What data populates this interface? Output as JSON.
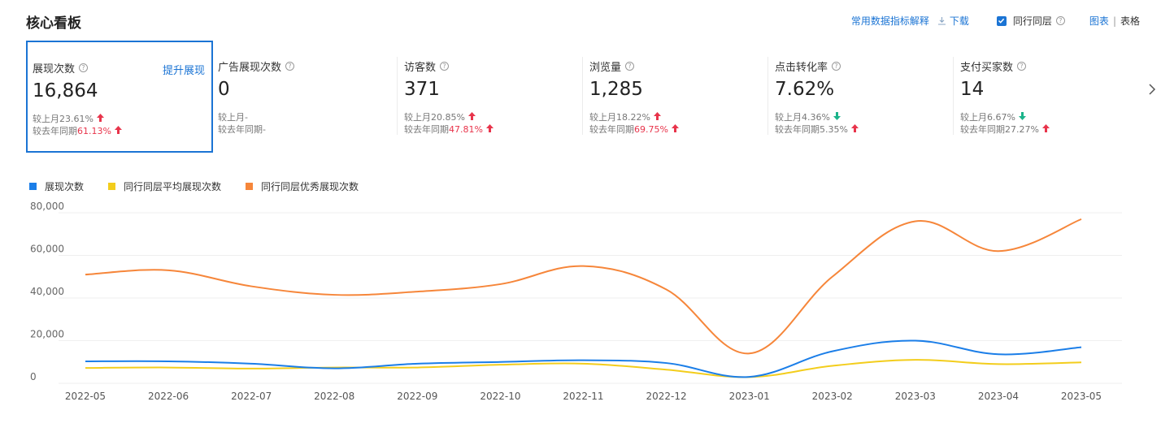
{
  "header": {
    "title": "核心看板",
    "metric_help_link": "常用数据指标解释",
    "download_label": "下载",
    "peer_checkbox_label": "同行同层",
    "peer_checked": true,
    "view_chart_label": "图表",
    "view_table_label": "表格"
  },
  "cards": [
    {
      "label": "展现次数",
      "value": "16,864",
      "boost": "提升展现",
      "mom_label": "较上月",
      "mom_pct": "23.61%",
      "mom_dir": "up",
      "yoy_label": "较去年同期",
      "yoy_pct": "61.13%",
      "yoy_dir": "up",
      "selected": true
    },
    {
      "label": "广告展现次数",
      "value": "0",
      "mom_label": "较上月",
      "mom_pct": "-",
      "mom_dir": "none",
      "yoy_label": "较去年同期",
      "yoy_pct": "-",
      "yoy_dir": "none"
    },
    {
      "label": "访客数",
      "value": "371",
      "mom_label": "较上月",
      "mom_pct": "20.85%",
      "mom_dir": "up",
      "yoy_label": "较去年同期",
      "yoy_pct": "47.81%",
      "yoy_dir": "up"
    },
    {
      "label": "浏览量",
      "value": "1,285",
      "mom_label": "较上月",
      "mom_pct": "18.22%",
      "mom_dir": "up",
      "yoy_label": "较去年同期",
      "yoy_pct": "69.75%",
      "yoy_dir": "up"
    },
    {
      "label": "点击转化率",
      "value": "7.62%",
      "mom_label": "较上月",
      "mom_pct": "4.36%",
      "mom_dir": "down",
      "yoy_label": "较去年同期",
      "yoy_pct": "5.35%",
      "yoy_dir": "up"
    },
    {
      "label": "支付买家数",
      "value": "14",
      "mom_label": "较上月",
      "mom_pct": "6.67%",
      "mom_dir": "down",
      "yoy_label": "较去年同期",
      "yoy_pct": "27.27%",
      "yoy_dir": "up"
    }
  ],
  "colors": {
    "accent": "#1b74d4",
    "up": "#e8344b",
    "down": "#1bb38a"
  },
  "chart_data": {
    "type": "line",
    "x": [
      "2022-05",
      "2022-06",
      "2022-07",
      "2022-08",
      "2022-09",
      "2022-10",
      "2022-11",
      "2022-12",
      "2023-01",
      "2023-02",
      "2023-03",
      "2023-04",
      "2023-05"
    ],
    "ylim": [
      0,
      80000
    ],
    "yticks": [
      "80,000",
      "60,000",
      "40,000",
      "20,000",
      "0"
    ],
    "series": [
      {
        "name": "展现次数",
        "color": "#1b7ee8",
        "values": [
          10300,
          10300,
          9200,
          7000,
          9200,
          10000,
          10800,
          9500,
          3000,
          15000,
          20000,
          13600,
          16900
        ]
      },
      {
        "name": "同行同层平均展现次数",
        "color": "#f3cd1c",
        "values": [
          7200,
          7400,
          6900,
          7400,
          7400,
          8700,
          9200,
          6400,
          2900,
          8200,
          11000,
          9000,
          9800
        ]
      },
      {
        "name": "同行同层优秀展现次数",
        "color": "#f6863a",
        "values": [
          51000,
          53000,
          45500,
          41500,
          43000,
          46500,
          55000,
          44000,
          14000,
          50000,
          76000,
          62000,
          77000
        ]
      }
    ],
    "grid": true,
    "legend": "top-left"
  }
}
